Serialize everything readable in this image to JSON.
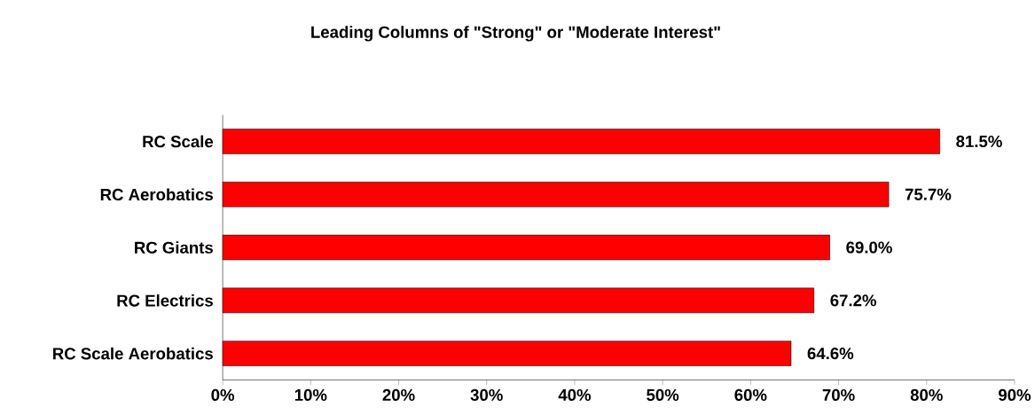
{
  "chart_data": {
    "type": "bar",
    "orientation": "horizontal",
    "title": "Leading Columns of \"Strong\" or \"Moderate Interest\"",
    "categories": [
      "RC Scale",
      "RC Aerobatics",
      "RC Giants",
      "RC Electrics",
      "RC Scale Aerobatics"
    ],
    "values": [
      81.5,
      75.7,
      69.0,
      67.2,
      64.6
    ],
    "value_labels": [
      "81.5%",
      "75.7%",
      "69.0%",
      "67.2%",
      "64.6%"
    ],
    "color": "#ff0000",
    "xlim": [
      0,
      90
    ],
    "xticks": [
      {
        "value": 0,
        "label": "0%"
      },
      {
        "value": 10,
        "label": "10%"
      },
      {
        "value": 20,
        "label": "20%"
      },
      {
        "value": 30,
        "label": "30%"
      },
      {
        "value": 40,
        "label": "40%"
      },
      {
        "value": 50,
        "label": "50%"
      },
      {
        "value": 60,
        "label": "60%"
      },
      {
        "value": 70,
        "label": "70%"
      },
      {
        "value": 80,
        "label": "80%"
      },
      {
        "value": 90,
        "label": "90%"
      }
    ],
    "grid": false
  }
}
